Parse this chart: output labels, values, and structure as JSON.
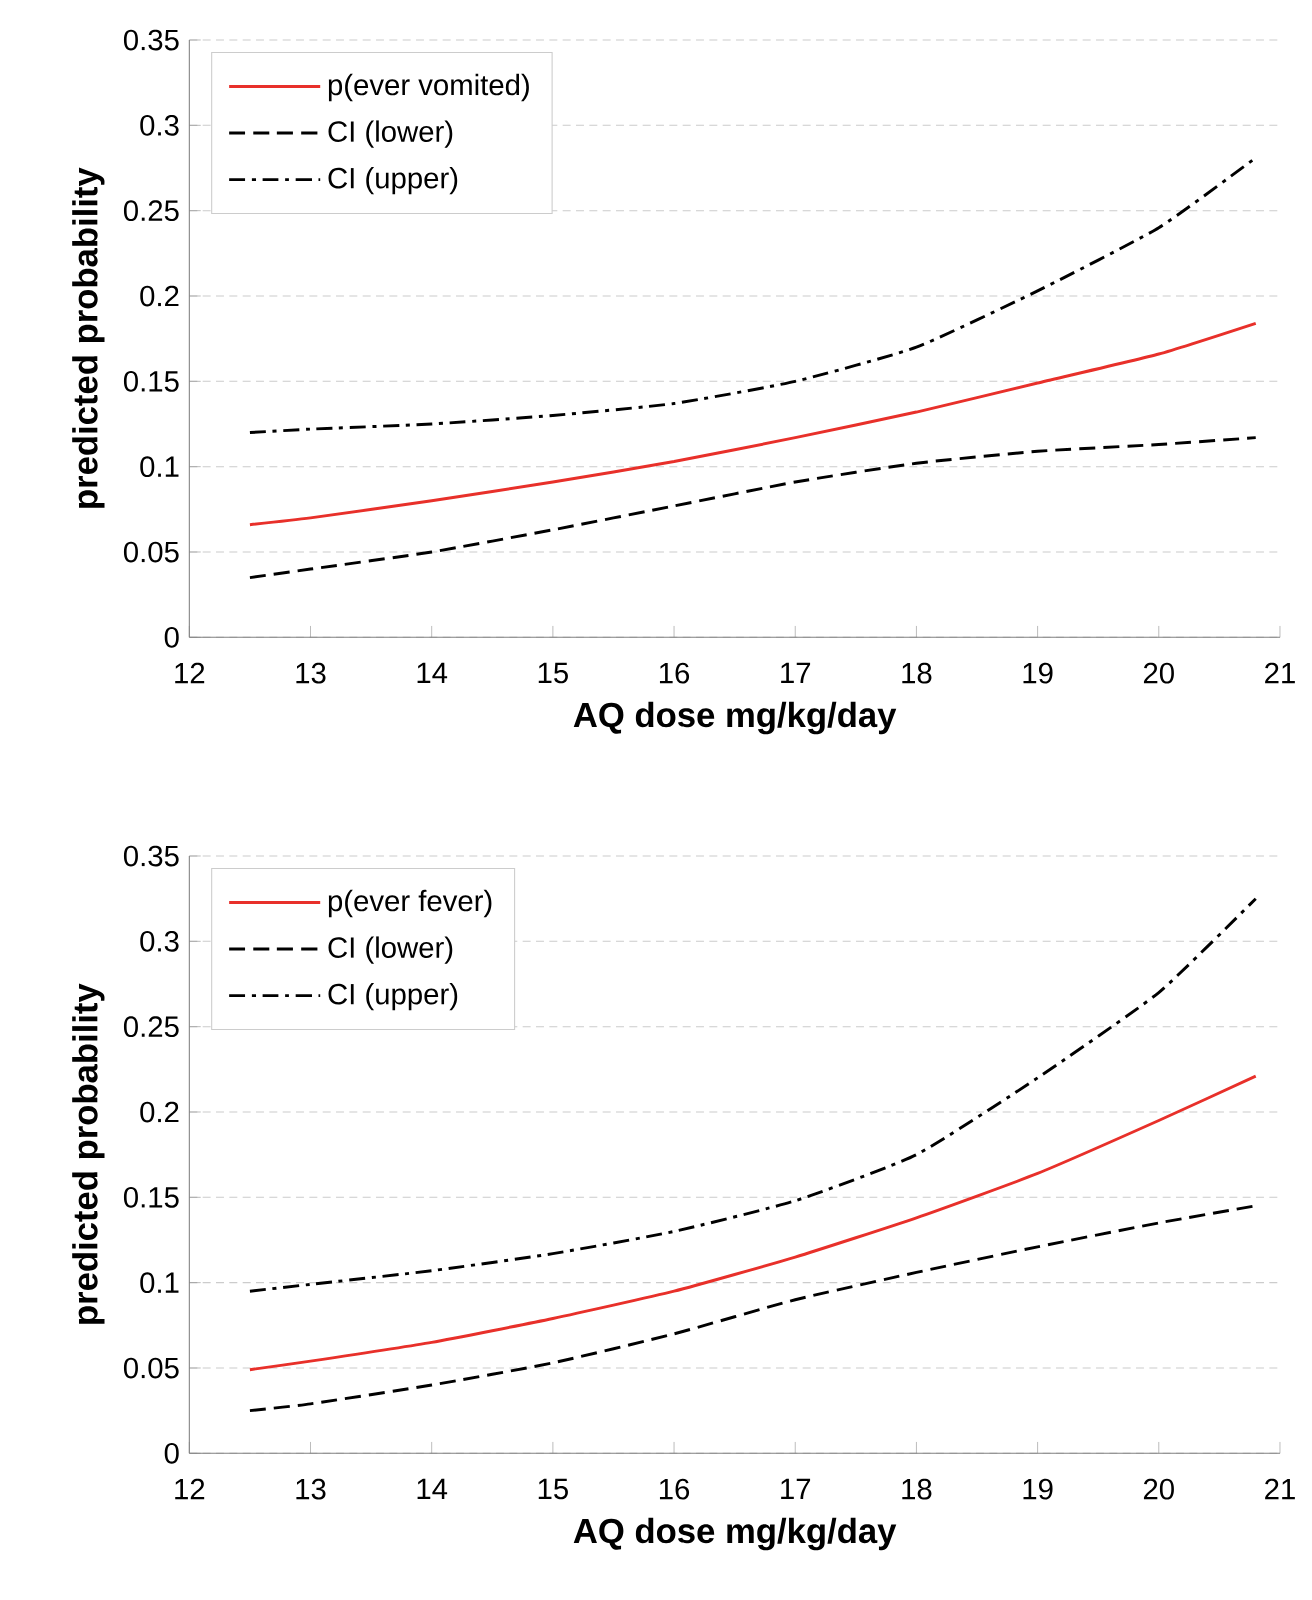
{
  "chart_data": [
    {
      "type": "line",
      "xlabel": "AQ dose mg/kg/day",
      "ylabel": "predicted probability",
      "x": [
        12.5,
        13,
        14,
        15,
        16,
        17,
        18,
        19,
        20,
        20.8
      ],
      "xlim": [
        12,
        21
      ],
      "xticks": [
        12,
        13,
        14,
        15,
        16,
        17,
        18,
        19,
        20,
        21
      ],
      "ylim": [
        0,
        0.35
      ],
      "yticks": [
        0,
        0.05,
        0.1,
        0.15,
        0.2,
        0.25,
        0.3,
        0.35
      ],
      "grid": "y",
      "legend": "top left",
      "marker": "none",
      "series": [
        {
          "name": "p(ever vomited)",
          "color": "#e8302a",
          "line_style": "solid",
          "values": [
            0.066,
            0.07,
            0.08,
            0.091,
            0.103,
            0.117,
            0.132,
            0.149,
            0.166,
            0.184
          ]
        },
        {
          "name": "CI (lower)",
          "color": "#000000",
          "line_style": "dashed",
          "values": [
            0.035,
            0.04,
            0.05,
            0.063,
            0.077,
            0.091,
            0.102,
            0.109,
            0.113,
            0.117
          ]
        },
        {
          "name": "CI (upper)",
          "color": "#000000",
          "line_style": "dashdot",
          "values": [
            0.12,
            0.122,
            0.125,
            0.13,
            0.137,
            0.15,
            0.17,
            0.203,
            0.24,
            0.281
          ]
        }
      ]
    },
    {
      "type": "line",
      "xlabel": "AQ dose mg/kg/day",
      "ylabel": "predicted probability",
      "x": [
        12.5,
        13,
        14,
        15,
        16,
        17,
        18,
        19,
        20,
        20.8
      ],
      "xlim": [
        12,
        21
      ],
      "xticks": [
        12,
        13,
        14,
        15,
        16,
        17,
        18,
        19,
        20,
        21
      ],
      "ylim": [
        0,
        0.35
      ],
      "yticks": [
        0,
        0.05,
        0.1,
        0.15,
        0.2,
        0.25,
        0.3,
        0.35
      ],
      "grid": "y",
      "legend": "top left",
      "marker": "none",
      "series": [
        {
          "name": "p(ever fever)",
          "color": "#e8302a",
          "line_style": "solid",
          "values": [
            0.049,
            0.054,
            0.065,
            0.079,
            0.095,
            0.115,
            0.138,
            0.164,
            0.195,
            0.221
          ]
        },
        {
          "name": "CI (lower)",
          "color": "#000000",
          "line_style": "dashed",
          "values": [
            0.025,
            0.029,
            0.04,
            0.053,
            0.07,
            0.09,
            0.106,
            0.121,
            0.135,
            0.145
          ]
        },
        {
          "name": "CI (upper)",
          "color": "#000000",
          "line_style": "dashdot",
          "values": [
            0.095,
            0.099,
            0.107,
            0.117,
            0.13,
            0.148,
            0.175,
            0.22,
            0.27,
            0.325
          ]
        }
      ]
    }
  ]
}
